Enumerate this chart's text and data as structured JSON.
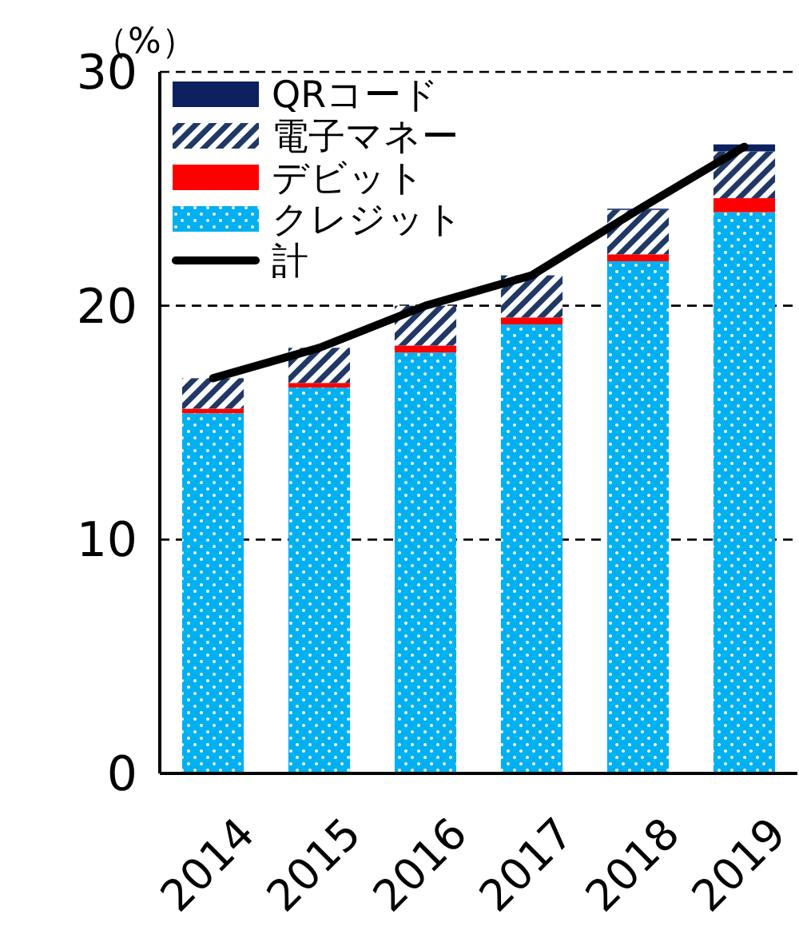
{
  "chart_data": {
    "type": "bar",
    "stacked": true,
    "ylabel": "（%）",
    "categories": [
      "2014",
      "2015",
      "2016",
      "2017",
      "2018",
      "2019"
    ],
    "series": [
      {
        "name": "クレジット",
        "color": "#00b0f0",
        "values": [
          15.4,
          16.5,
          18.0,
          19.2,
          21.9,
          24.0
        ]
      },
      {
        "name": "デビット",
        "color": "#ff0000",
        "values": [
          0.2,
          0.2,
          0.3,
          0.3,
          0.3,
          0.6
        ]
      },
      {
        "name": "電子マネー",
        "color": "#1f3864",
        "values": [
          1.3,
          1.5,
          1.7,
          1.8,
          1.9,
          2.0
        ]
      },
      {
        "name": "QRコード",
        "color": "#0d2160",
        "values": [
          null,
          null,
          null,
          null,
          0.05,
          0.3
        ]
      },
      {
        "name": "計",
        "type": "line",
        "color": "#000000",
        "values": [
          16.9,
          18.2,
          20.0,
          21.3,
          24.1,
          26.8
        ]
      }
    ],
    "ylim": [
      0,
      30
    ],
    "yticks": [
      0,
      10,
      20,
      30
    ],
    "grid": "y",
    "legend": "top left",
    "line_style": "solid"
  }
}
